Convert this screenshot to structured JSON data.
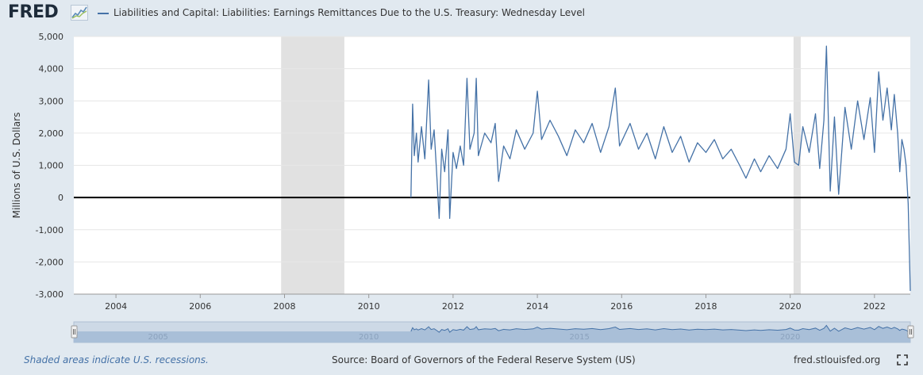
{
  "header": {
    "logo": "FRED",
    "series_title": "Liabilities and Capital: Liabilities: Earnings Remittances Due to the U.S. Treasury: Wednesday Level"
  },
  "footer": {
    "recession_note": "Shaded areas indicate U.S. recessions.",
    "source": "Source: Board of Governors of the Federal Reserve System (US)",
    "url": "fred.stlouisfed.org"
  },
  "colors": {
    "series": "#4572a7",
    "recession": "#e1e1e1",
    "background": "#e1e9f0",
    "plot": "#ffffff",
    "navigator": "#a9bfd8"
  },
  "icons": [
    "fred-chart-icon",
    "fullscreen-icon"
  ],
  "chart_data": {
    "type": "line",
    "ylabel": "Millions of U.S. Dollars",
    "xlabel": "",
    "xlim": [
      2003.0,
      2022.85
    ],
    "ylim": [
      -3000,
      5000
    ],
    "y_ticks": [
      5000,
      4000,
      3000,
      2000,
      1000,
      0,
      -1000,
      -2000,
      -3000
    ],
    "y_tick_labels": [
      "5,000",
      "4,000",
      "3,000",
      "2,000",
      "1,000",
      "0",
      "-1,000",
      "-2,000",
      "-3,000"
    ],
    "x_ticks": [
      2004,
      2006,
      2008,
      2010,
      2012,
      2014,
      2016,
      2018,
      2020,
      2022
    ],
    "x_tick_labels": [
      "2004",
      "2006",
      "2008",
      "2010",
      "2012",
      "2014",
      "2016",
      "2018",
      "2020",
      "2022"
    ],
    "recessions": [
      [
        2007.92,
        2009.42
      ],
      [
        2020.08,
        2020.25
      ]
    ],
    "navigator_labels": [
      "2005",
      "2010",
      "2015",
      "2020"
    ],
    "series": [
      {
        "name": "Liabilities and Capital: Liabilities: Earnings Remittances Due to the U.S. Treasury: Wednesday Level",
        "points": [
          [
            2011.0,
            0
          ],
          [
            2011.04,
            2900
          ],
          [
            2011.08,
            1300
          ],
          [
            2011.13,
            2000
          ],
          [
            2011.17,
            1100
          ],
          [
            2011.25,
            2200
          ],
          [
            2011.33,
            1200
          ],
          [
            2011.42,
            3650
          ],
          [
            2011.48,
            1500
          ],
          [
            2011.55,
            2100
          ],
          [
            2011.6,
            1000
          ],
          [
            2011.67,
            -650
          ],
          [
            2011.73,
            1500
          ],
          [
            2011.8,
            800
          ],
          [
            2011.88,
            2100
          ],
          [
            2011.92,
            -650
          ],
          [
            2012.0,
            1400
          ],
          [
            2012.08,
            900
          ],
          [
            2012.17,
            1600
          ],
          [
            2012.25,
            1000
          ],
          [
            2012.33,
            3700
          ],
          [
            2012.4,
            1500
          ],
          [
            2012.5,
            2000
          ],
          [
            2012.55,
            3700
          ],
          [
            2012.6,
            1300
          ],
          [
            2012.75,
            2000
          ],
          [
            2012.9,
            1700
          ],
          [
            2013.0,
            2300
          ],
          [
            2013.08,
            500
          ],
          [
            2013.2,
            1600
          ],
          [
            2013.35,
            1200
          ],
          [
            2013.5,
            2100
          ],
          [
            2013.7,
            1500
          ],
          [
            2013.9,
            2000
          ],
          [
            2014.0,
            3300
          ],
          [
            2014.1,
            1800
          ],
          [
            2014.3,
            2400
          ],
          [
            2014.5,
            1900
          ],
          [
            2014.7,
            1300
          ],
          [
            2014.9,
            2100
          ],
          [
            2015.1,
            1700
          ],
          [
            2015.3,
            2300
          ],
          [
            2015.5,
            1400
          ],
          [
            2015.7,
            2200
          ],
          [
            2015.85,
            3400
          ],
          [
            2015.95,
            1600
          ],
          [
            2016.2,
            2300
          ],
          [
            2016.4,
            1500
          ],
          [
            2016.6,
            2000
          ],
          [
            2016.8,
            1200
          ],
          [
            2017.0,
            2200
          ],
          [
            2017.2,
            1400
          ],
          [
            2017.4,
            1900
          ],
          [
            2017.6,
            1100
          ],
          [
            2017.8,
            1700
          ],
          [
            2018.0,
            1400
          ],
          [
            2018.2,
            1800
          ],
          [
            2018.4,
            1200
          ],
          [
            2018.6,
            1500
          ],
          [
            2018.8,
            1000
          ],
          [
            2018.95,
            600
          ],
          [
            2019.15,
            1200
          ],
          [
            2019.3,
            800
          ],
          [
            2019.5,
            1300
          ],
          [
            2019.7,
            900
          ],
          [
            2019.9,
            1500
          ],
          [
            2020.0,
            2600
          ],
          [
            2020.1,
            1100
          ],
          [
            2020.2,
            1000
          ],
          [
            2020.3,
            2200
          ],
          [
            2020.45,
            1400
          ],
          [
            2020.6,
            2600
          ],
          [
            2020.7,
            900
          ],
          [
            2020.8,
            2400
          ],
          [
            2020.86,
            4700
          ],
          [
            2020.95,
            200
          ],
          [
            2021.05,
            2500
          ],
          [
            2021.15,
            100
          ],
          [
            2021.3,
            2800
          ],
          [
            2021.45,
            1500
          ],
          [
            2021.6,
            3000
          ],
          [
            2021.75,
            1800
          ],
          [
            2021.9,
            3100
          ],
          [
            2022.0,
            1400
          ],
          [
            2022.1,
            3900
          ],
          [
            2022.2,
            2400
          ],
          [
            2022.3,
            3400
          ],
          [
            2022.4,
            2100
          ],
          [
            2022.47,
            3200
          ],
          [
            2022.55,
            2000
          ],
          [
            2022.6,
            800
          ],
          [
            2022.65,
            1800
          ],
          [
            2022.7,
            1500
          ],
          [
            2022.75,
            1000
          ],
          [
            2022.8,
            -200
          ],
          [
            2022.85,
            -2900
          ]
        ]
      }
    ]
  }
}
